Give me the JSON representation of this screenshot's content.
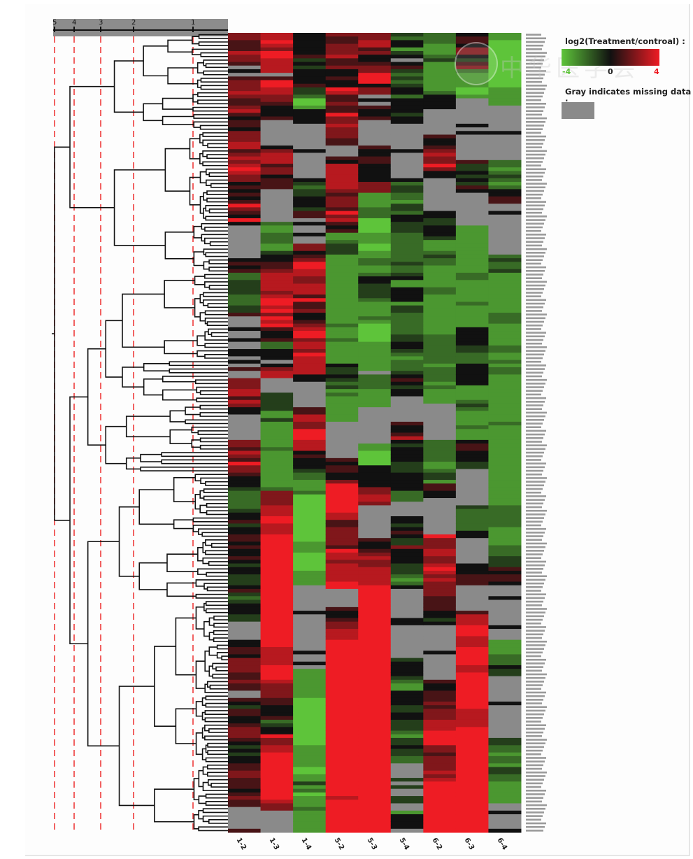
{
  "chart_data": {
    "type": "heatmap",
    "title": "",
    "columns": [
      "1-2",
      "1-3",
      "1-4",
      "5-2",
      "5-3",
      "5-4",
      "6-2",
      "6-3",
      "6-4"
    ],
    "row_label_pattern": "hsa-miR-…",
    "row_count": 220,
    "value_encoding": "Each column is a string of per-row log2(Treatment/control) values. Characters: A=-4, B=-3, C=-2, D=-1, E=0, F=1, G=2, H=3, I=4, '.' = missing data (gray).",
    "values_by_column": [
      "GGFFFHGGF.E.FGGGHGFFGHFEFFEGGGHHFGHGHIHGGEFEFEFIGFEIE.........EFEFCCDDDDCCCDDF...E..E..EE.E.F..GGGHHFHGEE.......GGFHGFIGGFEEEDCCCCCDEEFDEEFFEFEEFEDEEDDDEFDCDEEEDD.....EEFFEGGGGFFGFF..FEDFFEEFGGGFEDEDEEFFGGFFFEFGFF......FFFEEEE..EE.....E..GHG.G.GGHIIIIII",
      "HHIHGIIHHHH.FIIHHGGFEEEF.......EGHHHFGGEFFF.........CBBCCCBBDEEFFGHHHHHGHIIHIGIHIFEEFCCEEE.EGHH....DDDDDBBDBBBBBBBCBBBBBBBBBBCGGGGHHHIIHHHIIIIIIIIIIIIIIIIIIIIIIIIIIIIIIIHHHHHIIIIHGGGGFFEEEFCDEEIGGHHIIIIIIIIIIIIIHGG....................HIIGIHIIIIIIIIII",
      "EEEEEEFDEDEEEEFDDCAABEEEE.......E.......EDCDDEEEDFF.E..E..GGEFGIIHHGGHHHFIFFGEEFGHIIGHHGIHHHHHEE.......FFHHGGIIIHHHEFEEEDCCBBBCAAAAAAAAAAAAABBBAAAAABBBB.......E..........E..E.BBBBBBBBAAAAAAAAAAAAABBBBBBAABBDBCABBBCBBBBBBCAAABBBBBBCCC....EEEEDEEFFFFFEFFGFGGEEFFFGGFH.H",
      "GFFGGGHFFGEEFEEIHFFGFFIGGHGGGFF...FEHHHHHHHGFGGGFIGHFEFBBCDDDBBBBBBBBBBBBBBBBBBBCBBBCBBBBBBEDDEDCDBCBBBBBBB..........FEFFEEGIIIIIIIIHHFFGGGGGFIHHGHHHHHII.....FEEFGGHHHIIIIIIIIIIIIIIIIIIIIIIIIIIIIIIIIIIIIIIIIIIIHIIIIIIIIIIIIIIIIIEEFFGG.......EE.........FGHHIIIIIIIII",
      "GGHHFGEEFGGIIIEGG.E.FEEF.......FEEFFEEEEEGGGBBBBCCCAAAABBBAABBCCBBCEEDDDDCBBBBCBAAAAABBBBBBBB.CCCCBBBBB..........BBAAAAEEEEEEGGHHG.........FEEFGHGGHHHHHIIIIIIIIIIIIIIIIIIIIIIIIIIIIIIIIIIIIIIIIIIIIIIIIIIIIIIIIIIIIIIIIIIIIIGGHHHIIII.......E..........GGGHIIIIIIHHHII",
      "DCEEBDE.EFDCDCDEECEEEEDEE.......E.......ECDDCCBDDCEEDDDCCCCCCCCDCCDEBBEEEEBDDCCCCCCDDEEDCBCCCDEFEDEE.......FEEFHEDEEEEDDDEEEEECCC....EEDEFEDDGEEEEDDDCBCE........EE.........DEEEEDCBBEEEEDDEEDDDCBDDEDDCC....D.D..DD..BEEEE.......EE.........GFEEEEEF..EE",
      "CCCBBBCDBBBBBBBBCEEEE.......FEEFGHGGIGEE.........EEDDEEEDBBBCDCCBBBBBBCCBBBBBBBBBBBCCCCCCCCBCCCCBCBBBB..........CCCCCCBBCDDBFFEE..........IGGGHHGGHIHGHGGGGFFFFEEDE.......E.......FEEFFFGFGGGHHHIIIIGGFGGGGHGHIIIIIIIIIIIIIIIIIIIIHHHIGGGFFFFHHHIFF.......E.........FGFFEDGH",
      "EFFEGGEDFGCBBBBAAB.......E.E.......FDDEDEDFE.........BBBBBBBBBBBBBCCBBBBBBCBBBBBBEEEEEDDCCCEEEEEEBBBBCDCBBBBCBBBEFFEEEDD..........DCCCCCCEE.......EEEFFF.......FHHHIIIHHHIIIIIHHIIIIIIIIIIHHHHHIIIIIIIIIIIIIIIIIIIIIIIIIIIIIIIIIIIIIHHIIIIIIIH.......E.........FGHGGGGHIII",
      "BBAAAAAAAAAAAAABBBBB.......E.......CCBCDCBCEEFF..E...........CDCCDBBBBBBBBBBBCCCBBBBBBCCBBCBCCBBBBBBBBBBBBBCBBBBBBBBBBBBBBBBBBBBBBCCCCCCBBBBBCCCDDDFEFFE...E.......E...BBBBCCCEDD.......E.........DDCCBCCBDDCCBBBBBB..E....E..E.EE.EE.....E..EEEE.......E.........FGFEDDBA"
    ]
  },
  "scale_axis": {
    "ticks": [
      "5",
      "4",
      "3",
      "2",
      "1"
    ],
    "tick_values": [
      5,
      4,
      3,
      2,
      1
    ]
  },
  "legend": {
    "title": "log2(Treatment/controal) :",
    "min_label": "-4",
    "mid_label": "0",
    "max_label": "4",
    "range": [
      -4,
      4
    ],
    "colors": {
      "low": "#5ec43a",
      "mid": "#111111",
      "high": "#ee1c24"
    },
    "missing_title": "Gray indicates missing data :",
    "missing_color": "#8a8a8a"
  },
  "watermark": {
    "text": "中华医学会"
  }
}
